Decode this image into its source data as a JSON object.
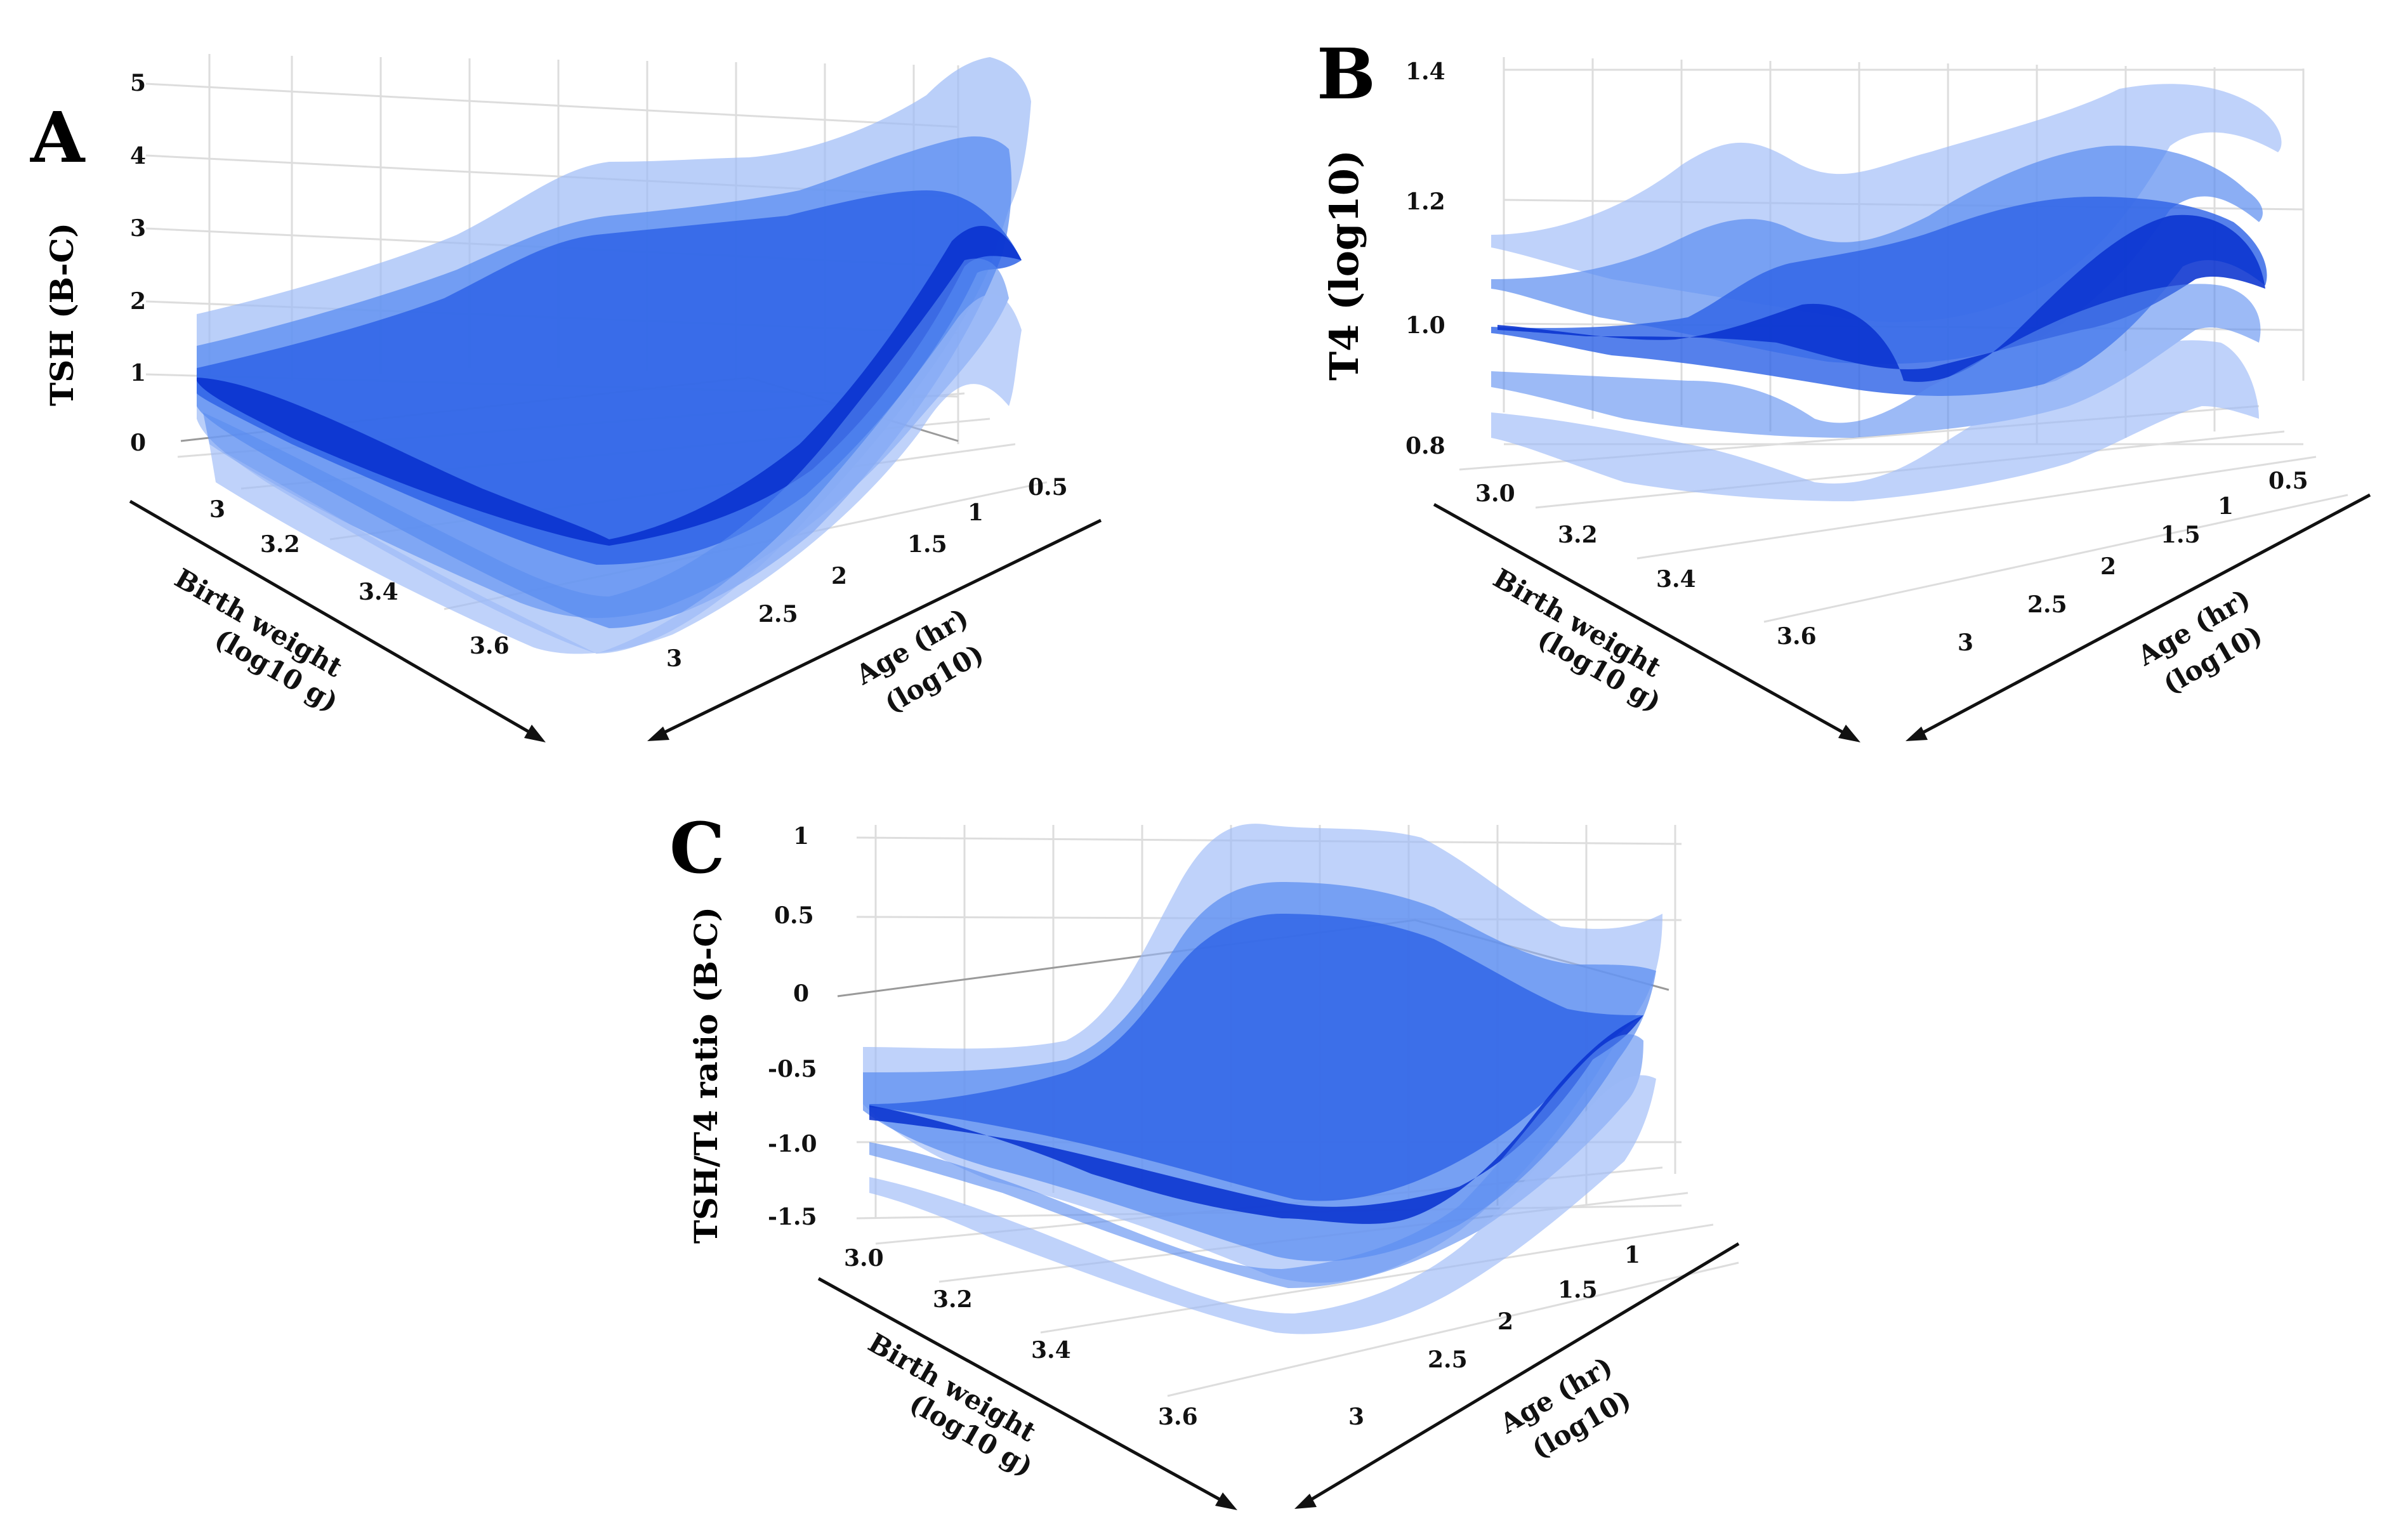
{
  "colors": {
    "band_outer": "#9dbaf7",
    "band_mid": "#5a8cf0",
    "band_inner": "#2f64e6",
    "center": "#0a33cf"
  },
  "chart_data": [
    {
      "type": "surface",
      "panel": "A",
      "zlabel": "TSH (B-C)",
      "xlabel": [
        "Birth weight",
        "(log10 g)"
      ],
      "ylabel": [
        "Age (hr)",
        "(log10)"
      ],
      "z_ticks": [
        "0",
        "1",
        "2",
        "3",
        "4",
        "5"
      ],
      "x_ticks": [
        "3",
        "3.2",
        "3.4",
        "3.6"
      ],
      "y_ticks": [
        "0.5",
        "1",
        "1.5",
        "2",
        "2.5",
        "3"
      ],
      "zlim": [
        0,
        5
      ],
      "series": [
        {
          "name": "outer-upper",
          "front_edge": [
            1.8,
            2.1,
            2.6,
            3.2,
            4.8
          ],
          "back_edge": [
            3.1,
            3.7,
            4.7,
            5.3,
            4.2
          ]
        },
        {
          "name": "mid-upper",
          "front_edge": [
            1.3,
            1.7,
            2.2,
            2.9,
            3.9
          ],
          "back_edge": [
            2.7,
            3.2,
            3.9,
            4.2,
            3.4
          ]
        },
        {
          "name": "median",
          "front_edge": [
            0.9,
            1.1,
            1.6,
            2.5,
            3.4
          ],
          "back_edge": [
            2.4,
            2.7,
            3.2,
            3.5,
            2.8
          ]
        },
        {
          "name": "mid-lower",
          "front_edge": [
            0.5,
            0.6,
            1.0,
            1.8,
            2.7
          ],
          "back_edge": [
            1.8,
            2.0,
            2.3,
            2.6,
            1.8
          ]
        },
        {
          "name": "outer-lower",
          "front_edge": [
            0.2,
            0.2,
            0.5,
            1.1,
            2.0
          ],
          "back_edge": [
            1.2,
            1.3,
            1.5,
            1.7,
            0.6
          ]
        }
      ]
    },
    {
      "type": "surface",
      "panel": "B",
      "zlabel": "T4 (log10)",
      "xlabel": [
        "Birth weight",
        "(log10 g)"
      ],
      "ylabel": [
        "Age (hr)",
        "(log10)"
      ],
      "z_ticks": [
        "0.8",
        "1.0",
        "1.2",
        "1.4"
      ],
      "x_ticks": [
        "3.0",
        "3.2",
        "3.4",
        "3.6"
      ],
      "y_ticks": [
        "0.5",
        "1",
        "1.5",
        "2",
        "2.5",
        "3"
      ],
      "zlim": [
        0.8,
        1.4
      ],
      "series": [
        {
          "name": "outer-upper",
          "front_edge": [
            1.13,
            1.27,
            1.16,
            1.27,
            1.38
          ],
          "back_edge": [
            1.17,
            1.31,
            1.33,
            1.35,
            1.29
          ]
        },
        {
          "name": "mid-upper",
          "front_edge": [
            1.06,
            1.13,
            1.1,
            1.2,
            1.28
          ],
          "back_edge": [
            1.12,
            1.24,
            1.25,
            1.27,
            1.2
          ]
        },
        {
          "name": "median",
          "front_edge": [
            1.0,
            1.05,
            0.99,
            1.12,
            1.21
          ],
          "back_edge": [
            1.06,
            1.15,
            1.18,
            1.2,
            1.1
          ]
        },
        {
          "name": "mid-lower",
          "front_edge": [
            0.94,
            0.97,
            0.93,
            1.04,
            1.12
          ],
          "back_edge": [
            0.99,
            1.06,
            1.08,
            1.1,
            1.0
          ]
        },
        {
          "name": "outer-lower",
          "front_edge": [
            0.88,
            0.89,
            0.87,
            0.96,
            1.03
          ],
          "back_edge": [
            0.92,
            0.97,
            0.99,
            1.0,
            0.9
          ]
        }
      ]
    },
    {
      "type": "surface",
      "panel": "C",
      "zlabel": "TSH/T4 ratio (B-C)",
      "xlabel": [
        "Birth weight",
        "(log10 g)"
      ],
      "ylabel": [
        "Age (hr)",
        "(log10)"
      ],
      "z_ticks": [
        "-1.5",
        "-1.0",
        "-0.5",
        "0",
        "0.5",
        "1"
      ],
      "x_ticks": [
        "3.0",
        "3.2",
        "3.4",
        "3.6"
      ],
      "y_ticks": [
        "1",
        "1.5",
        "2",
        "2.5",
        "3"
      ],
      "zlim": [
        -1.5,
        1
      ],
      "series": [
        {
          "name": "outer-upper",
          "front_edge": [
            -0.3,
            -0.2,
            0.6,
            1.0,
            0.7
          ],
          "back_edge": [
            0.4,
            0.9,
            1.05,
            0.8,
            0.5
          ]
        },
        {
          "name": "mid-upper",
          "front_edge": [
            -0.5,
            -0.6,
            0.1,
            0.5,
            0.2
          ],
          "back_edge": [
            0.1,
            0.5,
            0.6,
            0.4,
            0.1
          ]
        },
        {
          "name": "median",
          "front_edge": [
            -0.75,
            -1.0,
            -1.2,
            -0.3,
            -0.2
          ],
          "back_edge": [
            -0.2,
            0.2,
            0.3,
            0.0,
            -0.2
          ]
        },
        {
          "name": "mid-lower",
          "front_edge": [
            -1.0,
            -1.2,
            -1.35,
            -0.8,
            -0.5
          ],
          "back_edge": [
            -0.5,
            -0.2,
            -0.1,
            -0.4,
            -0.5
          ]
        },
        {
          "name": "outer-lower",
          "front_edge": [
            -1.25,
            -1.4,
            -1.5,
            -1.0,
            -0.8
          ],
          "back_edge": [
            -0.8,
            -0.5,
            -0.4,
            -0.7,
            -0.8
          ]
        }
      ]
    }
  ]
}
